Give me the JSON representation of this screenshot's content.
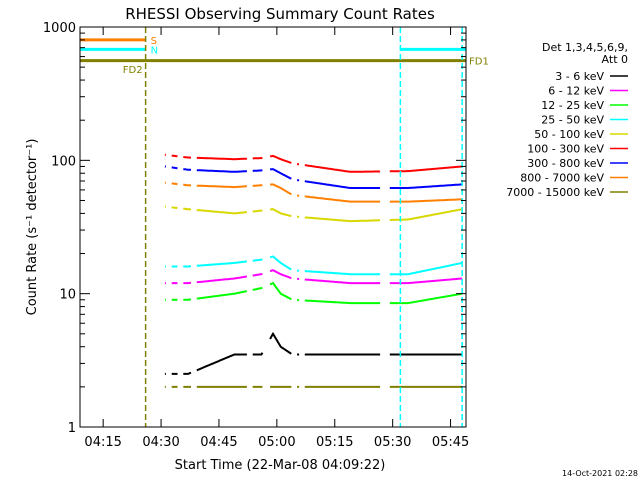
{
  "chart_data": {
    "type": "line",
    "title": "RHESSI Observing Summary Count Rates",
    "xlabel": "Start Time (22-Mar-08 04:09:22)",
    "ylabel": "Count Rate (s⁻¹ detector⁻¹)",
    "yscale": "log",
    "ylim": [
      1,
      1000
    ],
    "xlim_minutes_after_0409": [
      0,
      100
    ],
    "x_ticks": [
      {
        "label": "04:15",
        "minute": 6
      },
      {
        "label": "04:30",
        "minute": 21
      },
      {
        "label": "04:45",
        "minute": 36
      },
      {
        "label": "05:00",
        "minute": 51
      },
      {
        "label": "05:15",
        "minute": 66
      },
      {
        "label": "05:30",
        "minute": 81
      },
      {
        "label": "05:45",
        "minute": 96
      }
    ],
    "y_ticks": [
      {
        "label": "1",
        "value": 1
      },
      {
        "label": "10",
        "value": 10
      },
      {
        "label": "100",
        "value": 100
      },
      {
        "label": "1000",
        "value": 1000
      }
    ],
    "legend": {
      "placement": "right",
      "header": [
        "Det 1,3,4,5,6,9,",
        "Att 0"
      ],
      "entries": [
        {
          "label": "3 - 6 keV",
          "color": "#000000"
        },
        {
          "label": "6 - 12 keV",
          "color": "#ff00ff"
        },
        {
          "label": "12 - 25 keV",
          "color": "#00ff00"
        },
        {
          "label": "25 - 50 keV",
          "color": "#00ffff"
        },
        {
          "label": "50 - 100 keV",
          "color": "#d8d800"
        },
        {
          "label": "100 - 300 keV",
          "color": "#ff0000"
        },
        {
          "label": "300 - 800 keV",
          "color": "#0000ff"
        },
        {
          "label": "800 - 7000 keV",
          "color": "#ff8000"
        },
        {
          "label": "7000 - 15000 keV",
          "color": "#808000"
        }
      ]
    },
    "series": [
      {
        "name": "3 - 6 keV",
        "color": "#000000",
        "values": [
          {
            "x": 22,
            "y": 2.5
          },
          {
            "x": 28,
            "y": 2.5
          },
          {
            "x": 40,
            "y": 3.5
          },
          {
            "x": 47,
            "y": 3.5
          },
          {
            "x": 50,
            "y": 5.0
          },
          {
            "x": 52,
            "y": 4.0
          },
          {
            "x": 55,
            "y": 3.5
          },
          {
            "x": 70,
            "y": 3.5
          },
          {
            "x": 85,
            "y": 3.5
          },
          {
            "x": 99,
            "y": 3.5
          }
        ]
      },
      {
        "name": "6 - 12 keV",
        "color": "#ff00ff",
        "values": [
          {
            "x": 22,
            "y": 12
          },
          {
            "x": 28,
            "y": 12
          },
          {
            "x": 40,
            "y": 13
          },
          {
            "x": 47,
            "y": 14
          },
          {
            "x": 50,
            "y": 15
          },
          {
            "x": 52,
            "y": 14
          },
          {
            "x": 55,
            "y": 13
          },
          {
            "x": 70,
            "y": 12
          },
          {
            "x": 85,
            "y": 12
          },
          {
            "x": 99,
            "y": 13
          }
        ]
      },
      {
        "name": "12 - 25 keV",
        "color": "#00ff00",
        "values": [
          {
            "x": 22,
            "y": 9
          },
          {
            "x": 28,
            "y": 9
          },
          {
            "x": 40,
            "y": 10
          },
          {
            "x": 47,
            "y": 11
          },
          {
            "x": 50,
            "y": 12
          },
          {
            "x": 52,
            "y": 10
          },
          {
            "x": 55,
            "y": 9
          },
          {
            "x": 70,
            "y": 8.5
          },
          {
            "x": 85,
            "y": 8.5
          },
          {
            "x": 99,
            "y": 10
          }
        ]
      },
      {
        "name": "25 - 50 keV",
        "color": "#00ffff",
        "values": [
          {
            "x": 22,
            "y": 16
          },
          {
            "x": 28,
            "y": 16
          },
          {
            "x": 40,
            "y": 17
          },
          {
            "x": 47,
            "y": 18
          },
          {
            "x": 50,
            "y": 19
          },
          {
            "x": 52,
            "y": 17
          },
          {
            "x": 55,
            "y": 15
          },
          {
            "x": 70,
            "y": 14
          },
          {
            "x": 85,
            "y": 14
          },
          {
            "x": 99,
            "y": 17
          }
        ]
      },
      {
        "name": "50 - 100 keV",
        "color": "#d8d800",
        "values": [
          {
            "x": 22,
            "y": 45
          },
          {
            "x": 28,
            "y": 43
          },
          {
            "x": 40,
            "y": 40
          },
          {
            "x": 47,
            "y": 42
          },
          {
            "x": 50,
            "y": 43
          },
          {
            "x": 52,
            "y": 40
          },
          {
            "x": 55,
            "y": 38
          },
          {
            "x": 70,
            "y": 35
          },
          {
            "x": 85,
            "y": 36
          },
          {
            "x": 99,
            "y": 43
          }
        ]
      },
      {
        "name": "100 - 300 keV",
        "color": "#ff0000",
        "values": [
          {
            "x": 22,
            "y": 110
          },
          {
            "x": 28,
            "y": 105
          },
          {
            "x": 40,
            "y": 102
          },
          {
            "x": 47,
            "y": 104
          },
          {
            "x": 50,
            "y": 108
          },
          {
            "x": 52,
            "y": 102
          },
          {
            "x": 55,
            "y": 95
          },
          {
            "x": 70,
            "y": 82
          },
          {
            "x": 85,
            "y": 83
          },
          {
            "x": 99,
            "y": 90
          }
        ]
      },
      {
        "name": "300 - 800 keV",
        "color": "#0000ff",
        "values": [
          {
            "x": 22,
            "y": 90
          },
          {
            "x": 28,
            "y": 85
          },
          {
            "x": 40,
            "y": 82
          },
          {
            "x": 47,
            "y": 84
          },
          {
            "x": 50,
            "y": 86
          },
          {
            "x": 52,
            "y": 80
          },
          {
            "x": 55,
            "y": 72
          },
          {
            "x": 70,
            "y": 62
          },
          {
            "x": 85,
            "y": 62
          },
          {
            "x": 99,
            "y": 66
          }
        ]
      },
      {
        "name": "800 - 7000 keV",
        "color": "#ff8000",
        "values": [
          {
            "x": 22,
            "y": 68
          },
          {
            "x": 28,
            "y": 65
          },
          {
            "x": 40,
            "y": 63
          },
          {
            "x": 47,
            "y": 65
          },
          {
            "x": 50,
            "y": 66
          },
          {
            "x": 52,
            "y": 62
          },
          {
            "x": 55,
            "y": 55
          },
          {
            "x": 70,
            "y": 49
          },
          {
            "x": 85,
            "y": 49
          },
          {
            "x": 99,
            "y": 51
          }
        ]
      },
      {
        "name": "7000 - 15000 keV",
        "color": "#808000",
        "values": [
          {
            "x": 22,
            "y": 2.0
          },
          {
            "x": 28,
            "y": 2.0
          },
          {
            "x": 40,
            "y": 2.0
          },
          {
            "x": 55,
            "y": 2.0
          },
          {
            "x": 70,
            "y": 2.0
          },
          {
            "x": 85,
            "y": 2.0
          },
          {
            "x": 99,
            "y": 2.0
          }
        ]
      }
    ],
    "gaps_minutes": [
      [
        0,
        20
      ],
      [
        22.5,
        23.5
      ],
      [
        25.5,
        26.5
      ],
      [
        29,
        30
      ],
      [
        43.5,
        44.5
      ],
      [
        47.5,
        49
      ],
      [
        55,
        56
      ],
      [
        57,
        58
      ],
      [
        78,
        80
      ]
    ],
    "flags": [
      {
        "label": "S",
        "color": "#ff8000",
        "value": 800,
        "x_from": 0,
        "x_to": 17
      },
      {
        "label": "N",
        "color": "#00ffff",
        "value": 680,
        "x_from": 0,
        "x_to": 17
      },
      {
        "label": "N",
        "color": "#00ffff",
        "value": 680,
        "x_from": 83,
        "x_to": 100
      },
      {
        "label": "FD1",
        "color": "#808000",
        "value": 560,
        "x_from": 0,
        "x_to": 100
      }
    ],
    "markers": [
      {
        "label": "FD2",
        "color": "#808000",
        "minute": 17
      },
      {
        "label": "",
        "color": "#00ffff",
        "minute": 83
      },
      {
        "label": "",
        "color": "#00ffff",
        "minute": 99
      }
    ],
    "timestamp": "14-Oct-2021 02:28"
  }
}
